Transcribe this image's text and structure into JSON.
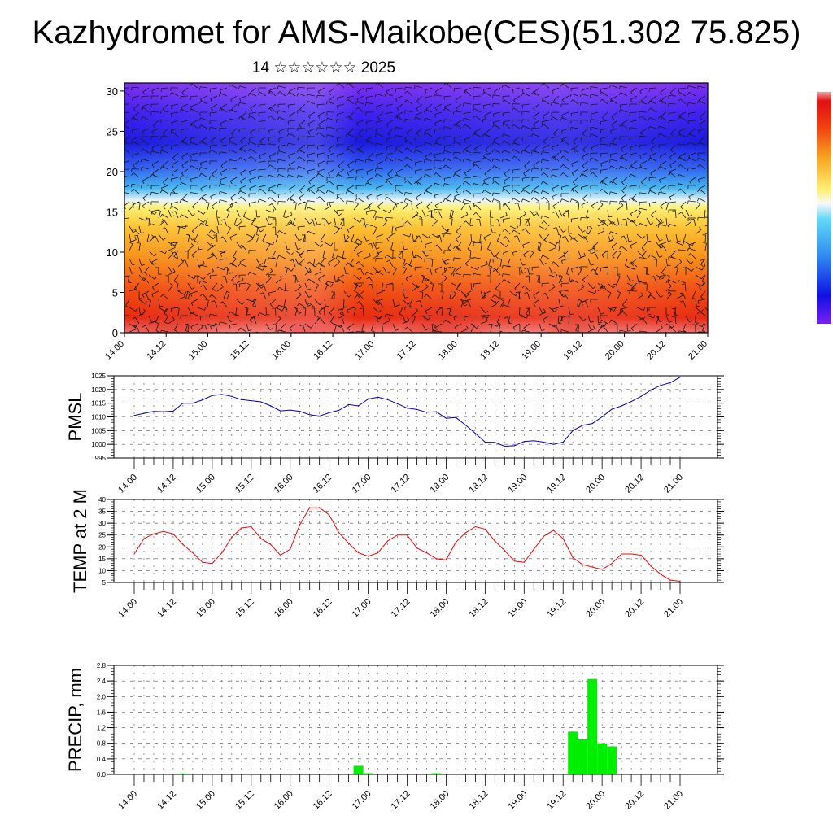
{
  "title": "Kazhydromet for AMS-Maikobe(CES)(51.302 75.825)",
  "subtitle": "14 ☆☆☆☆☆☆ 2025",
  "chart_data": [
    {
      "type": "heatmap",
      "ylim": [
        0,
        31
      ],
      "yticks": [
        0,
        5,
        10,
        15,
        20,
        25,
        30
      ],
      "xticks": [
        "14.00",
        "14.12",
        "15.00",
        "15.12",
        "16.00",
        "16.12",
        "17.00",
        "17.12",
        "18.00",
        "18.12",
        "19.00",
        "19.12",
        "20.00",
        "20.12",
        "21.00"
      ],
      "colorbar": true,
      "overlay": "wind barbs"
    },
    {
      "type": "line",
      "ylabel": "PMSL",
      "ylim": [
        995,
        1025
      ],
      "yticks": [
        995,
        1000,
        1005,
        1010,
        1015,
        1020,
        1025
      ],
      "xticks": [
        "14.00",
        "14.12",
        "15.00",
        "15.12",
        "16.00",
        "16.12",
        "17.00",
        "17.12",
        "18.00",
        "18.12",
        "19.00",
        "19.12",
        "20.00",
        "20.12",
        "21.00"
      ],
      "grid": true,
      "color": "#0000cc",
      "values": [
        1010.5,
        1011.3,
        1012.0,
        1011.9,
        1012.1,
        1015.0,
        1015.0,
        1016.2,
        1017.8,
        1018.2,
        1017.5,
        1016.3,
        1015.9,
        1015.5,
        1014.0,
        1012.2,
        1012.5,
        1012.0,
        1010.8,
        1010.3,
        1011.5,
        1012.4,
        1014.5,
        1014.0,
        1016.5,
        1017.2,
        1016.3,
        1014.8,
        1013.2,
        1012.7,
        1011.7,
        1011.9,
        1009.5,
        1009.8,
        1007.0,
        1004.0,
        1000.8,
        1000.7,
        999.3,
        999.5,
        1001.0,
        1001.3,
        1000.8,
        1000.0,
        1000.8,
        1005.0,
        1006.9,
        1007.6,
        1010.0,
        1012.8,
        1014.0,
        1015.6,
        1017.5,
        1019.8,
        1021.5,
        1022.5,
        1024.5
      ]
    },
    {
      "type": "line",
      "ylabel": "TEMP at 2 M",
      "ylim": [
        5,
        40
      ],
      "yticks": [
        5,
        10,
        15,
        20,
        25,
        30,
        35,
        40
      ],
      "xticks": [
        "14.00",
        "14.12",
        "15.00",
        "15.12",
        "16.00",
        "16.12",
        "17.00",
        "17.12",
        "18.00",
        "18.12",
        "19.00",
        "19.12",
        "20.00",
        "20.12",
        "21.00"
      ],
      "grid": true,
      "color": "#ff0000",
      "values": [
        17.0,
        23.5,
        25.5,
        26.5,
        25.5,
        21.0,
        17.5,
        13.5,
        13.0,
        17.5,
        24.0,
        28.0,
        28.5,
        23.5,
        21.0,
        16.5,
        19.0,
        29.5,
        36.5,
        36.5,
        33.5,
        26.0,
        21.5,
        17.5,
        16.0,
        17.5,
        22.5,
        25.0,
        25.0,
        19.5,
        17.5,
        15.0,
        14.5,
        22.0,
        26.0,
        28.5,
        27.5,
        22.5,
        18.5,
        14.0,
        13.5,
        19.0,
        24.5,
        27.0,
        23.5,
        15.5,
        12.5,
        11.5,
        10.5,
        13.0,
        17.0,
        17.0,
        16.5,
        12.0,
        8.5,
        6.0,
        5.5
      ]
    },
    {
      "type": "bar",
      "ylabel": "PRECIP, mm",
      "ylim": [
        0.0,
        2.8
      ],
      "yticks": [
        "0.0",
        "0.4",
        "0.8",
        "1.2",
        "1.6",
        "2.0",
        "2.4",
        "2.8"
      ],
      "xticks": [
        "14.00",
        "14.12",
        "15.00",
        "15.12",
        "16.00",
        "16.12",
        "17.00",
        "17.12",
        "18.00",
        "18.12",
        "19.00",
        "19.12",
        "20.00",
        "20.12",
        "21.00"
      ],
      "grid": true,
      "color": "#00ee00",
      "values": [
        0,
        0,
        0,
        0,
        0,
        0.02,
        0,
        0,
        0,
        0,
        0,
        0,
        0,
        0,
        0,
        0,
        0,
        0,
        0,
        0,
        0,
        0,
        0,
        0.22,
        0.03,
        0,
        0,
        0,
        0,
        0,
        0,
        0.03,
        0,
        0,
        0,
        0,
        0,
        0,
        0,
        0,
        0,
        0,
        0,
        0,
        0,
        1.1,
        0.9,
        2.45,
        0.8,
        0.72,
        0,
        0,
        0,
        0,
        0,
        0,
        0
      ]
    }
  ]
}
